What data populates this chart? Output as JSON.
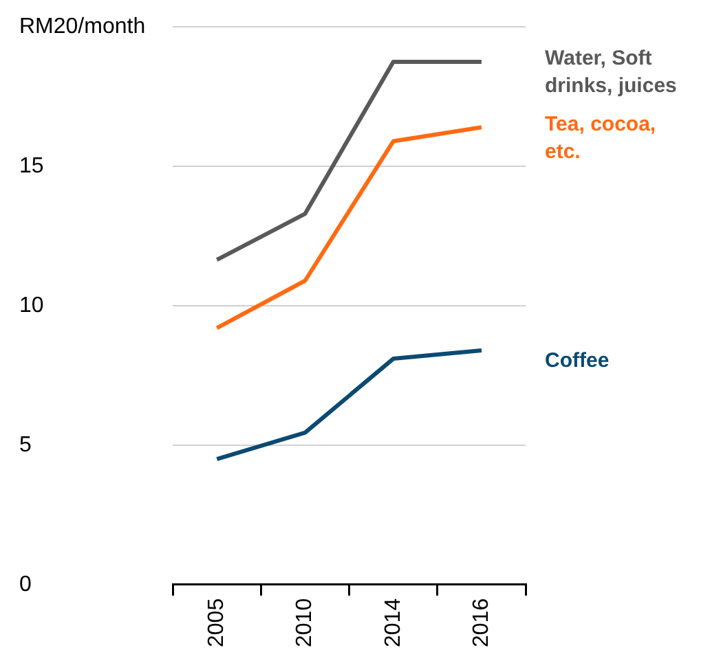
{
  "chart_data": {
    "type": "line",
    "categories": [
      "2005",
      "2010",
      "2014",
      "2016"
    ],
    "series": [
      {
        "name": "Water, Soft drinks, juices",
        "color": "#595959",
        "values": [
          11.65,
          13.3,
          18.75,
          18.75
        ]
      },
      {
        "name": "Tea, cocoa, etc.",
        "color": "#ff6a13",
        "values": [
          9.2,
          10.9,
          15.9,
          16.4
        ]
      },
      {
        "name": "Coffee",
        "color": "#0b4a72",
        "values": [
          4.5,
          5.45,
          8.1,
          8.4
        ]
      }
    ],
    "ylim": [
      0,
      20
    ],
    "yticks": [
      0,
      5,
      10,
      15,
      {
        "value": 20,
        "label": "RM20/month"
      }
    ],
    "grid": "y",
    "legend": false,
    "marker": "none",
    "line_style": "solid"
  }
}
